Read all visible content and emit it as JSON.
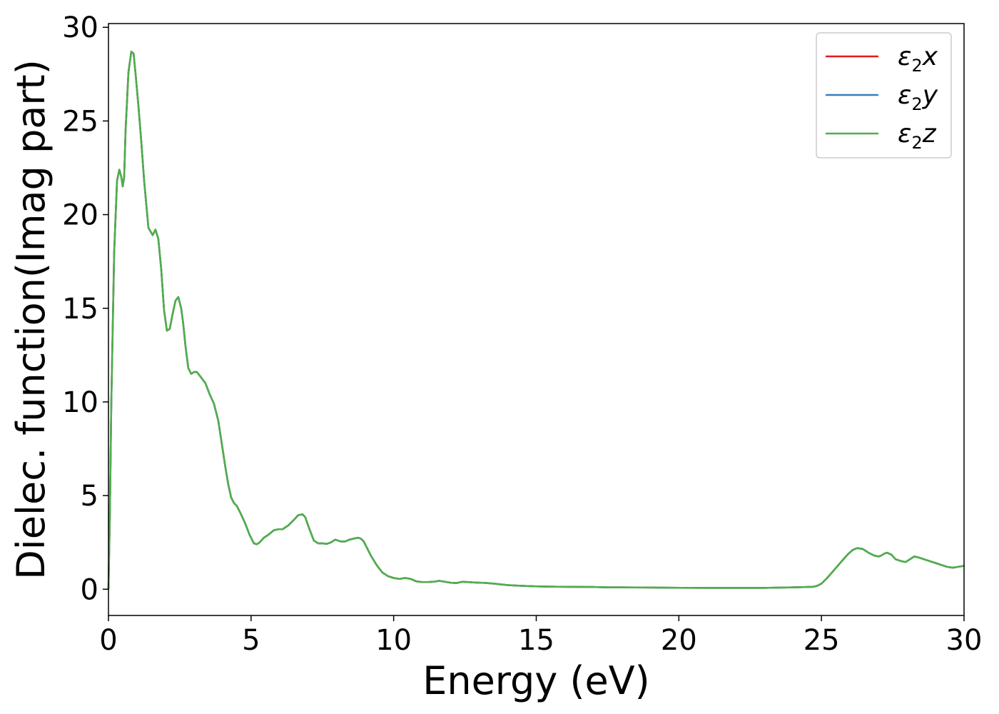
{
  "chart_data": {
    "type": "line",
    "title": "",
    "xlabel": "Energy (eV)",
    "ylabel": "Dielec. function(Imag part)",
    "xlim": [
      0,
      30
    ],
    "ylim": [
      -1.4,
      30.2
    ],
    "xticks": [
      0,
      5,
      10,
      15,
      20,
      25,
      30
    ],
    "yticks": [
      0,
      5,
      10,
      15,
      20,
      25,
      30
    ],
    "grid": false,
    "legend_position": "top-right",
    "series": [
      {
        "name": "ε2x",
        "legend_base": "ε",
        "legend_sub": "2",
        "legend_var": "x",
        "color": "#e41a1c",
        "x": [
          0,
          0.05,
          0.1,
          0.2,
          0.3,
          0.38,
          0.45,
          0.5,
          0.55,
          0.6,
          0.7,
          0.8,
          0.88,
          0.95,
          1.05,
          1.15,
          1.25,
          1.4,
          1.55,
          1.65,
          1.75,
          1.85,
          1.95,
          2.05,
          2.15,
          2.25,
          2.35,
          2.45,
          2.55,
          2.62,
          2.7,
          2.8,
          2.9,
          3.0,
          3.1,
          3.25,
          3.4,
          3.55,
          3.7,
          3.85,
          4.0,
          4.1,
          4.2,
          4.3,
          4.4,
          4.5,
          4.65,
          4.8,
          4.95,
          5.1,
          5.2,
          5.3,
          5.45,
          5.6,
          5.8,
          5.95,
          6.1,
          6.3,
          6.5,
          6.65,
          6.8,
          6.9,
          7.0,
          7.1,
          7.2,
          7.35,
          7.5,
          7.65,
          7.8,
          7.95,
          8.05,
          8.15,
          8.3,
          8.45,
          8.6,
          8.75,
          8.85,
          8.95,
          9.05,
          9.2,
          9.4,
          9.6,
          9.8,
          10.0,
          10.2,
          10.4,
          10.5,
          10.6,
          10.8,
          11.0,
          11.2,
          11.4,
          11.6,
          11.8,
          12.0,
          12.2,
          12.4,
          12.6,
          12.8,
          13.0,
          13.2,
          13.5,
          14.0,
          14.5,
          15.0,
          16.0,
          17.0,
          17.5,
          18.0,
          19.0,
          20.0,
          21.0,
          22.0,
          23.0,
          24.0,
          24.5,
          24.7,
          24.85,
          25.0,
          25.2,
          25.4,
          25.6,
          25.8,
          25.95,
          26.1,
          26.25,
          26.45,
          26.65,
          26.85,
          27.0,
          27.1,
          27.2,
          27.3,
          27.45,
          27.6,
          27.8,
          27.95,
          28.1,
          28.25,
          28.4,
          28.6,
          28.8,
          29.0,
          29.2,
          29.4,
          29.6,
          29.8,
          30.0
        ],
        "y": [
          0.0,
          4.0,
          10.0,
          18.0,
          21.8,
          22.4,
          22.0,
          21.5,
          22.0,
          24.5,
          27.6,
          28.7,
          28.6,
          27.5,
          25.8,
          23.9,
          21.8,
          19.3,
          18.9,
          19.2,
          18.7,
          17.1,
          14.9,
          13.8,
          13.9,
          14.7,
          15.4,
          15.6,
          15.0,
          14.2,
          13.0,
          11.8,
          11.5,
          11.6,
          11.6,
          11.3,
          11.0,
          10.4,
          9.9,
          9.0,
          7.5,
          6.5,
          5.6,
          4.9,
          4.6,
          4.45,
          4.0,
          3.5,
          2.9,
          2.45,
          2.4,
          2.5,
          2.75,
          2.9,
          3.15,
          3.2,
          3.2,
          3.4,
          3.7,
          3.95,
          4.0,
          3.85,
          3.4,
          3.0,
          2.6,
          2.45,
          2.45,
          2.42,
          2.5,
          2.65,
          2.6,
          2.55,
          2.55,
          2.65,
          2.7,
          2.75,
          2.7,
          2.55,
          2.25,
          1.8,
          1.3,
          0.9,
          0.7,
          0.6,
          0.55,
          0.6,
          0.58,
          0.55,
          0.42,
          0.38,
          0.38,
          0.4,
          0.45,
          0.4,
          0.35,
          0.33,
          0.4,
          0.38,
          0.36,
          0.35,
          0.34,
          0.3,
          0.22,
          0.18,
          0.15,
          0.13,
          0.12,
          0.1,
          0.1,
          0.09,
          0.08,
          0.07,
          0.07,
          0.07,
          0.1,
          0.12,
          0.13,
          0.18,
          0.3,
          0.6,
          0.95,
          1.3,
          1.65,
          1.9,
          2.1,
          2.2,
          2.15,
          1.95,
          1.8,
          1.75,
          1.8,
          1.9,
          1.95,
          1.85,
          1.6,
          1.5,
          1.45,
          1.6,
          1.75,
          1.7,
          1.6,
          1.5,
          1.4,
          1.3,
          1.2,
          1.15,
          1.2,
          1.25
        ]
      },
      {
        "name": "ε2y",
        "legend_base": "ε",
        "legend_sub": "2",
        "legend_var": "y",
        "color": "#377eb8",
        "x": [
          0,
          0.05,
          0.1,
          0.2,
          0.3,
          0.38,
          0.45,
          0.5,
          0.55,
          0.6,
          0.7,
          0.8,
          0.88,
          0.95,
          1.05,
          1.15,
          1.25,
          1.4,
          1.55,
          1.65,
          1.75,
          1.85,
          1.95,
          2.05,
          2.15,
          2.25,
          2.35,
          2.45,
          2.55,
          2.62,
          2.7,
          2.8,
          2.9,
          3.0,
          3.1,
          3.25,
          3.4,
          3.55,
          3.7,
          3.85,
          4.0,
          4.1,
          4.2,
          4.3,
          4.4,
          4.5,
          4.65,
          4.8,
          4.95,
          5.1,
          5.2,
          5.3,
          5.45,
          5.6,
          5.8,
          5.95,
          6.1,
          6.3,
          6.5,
          6.65,
          6.8,
          6.9,
          7.0,
          7.1,
          7.2,
          7.35,
          7.5,
          7.65,
          7.8,
          7.95,
          8.05,
          8.15,
          8.3,
          8.45,
          8.6,
          8.75,
          8.85,
          8.95,
          9.05,
          9.2,
          9.4,
          9.6,
          9.8,
          10.0,
          10.2,
          10.4,
          10.5,
          10.6,
          10.8,
          11.0,
          11.2,
          11.4,
          11.6,
          11.8,
          12.0,
          12.2,
          12.4,
          12.6,
          12.8,
          13.0,
          13.2,
          13.5,
          14.0,
          14.5,
          15.0,
          16.0,
          17.0,
          17.5,
          18.0,
          19.0,
          20.0,
          21.0,
          22.0,
          23.0,
          24.0,
          24.5,
          24.7,
          24.85,
          25.0,
          25.2,
          25.4,
          25.6,
          25.8,
          25.95,
          26.1,
          26.25,
          26.45,
          26.65,
          26.85,
          27.0,
          27.1,
          27.2,
          27.3,
          27.45,
          27.6,
          27.8,
          27.95,
          28.1,
          28.25,
          28.4,
          28.6,
          28.8,
          29.0,
          29.2,
          29.4,
          29.6,
          29.8,
          30.0
        ],
        "y": [
          0.0,
          4.0,
          10.0,
          18.0,
          21.8,
          22.4,
          22.0,
          21.5,
          22.0,
          24.5,
          27.6,
          28.7,
          28.6,
          27.5,
          25.8,
          23.9,
          21.8,
          19.3,
          18.9,
          19.2,
          18.7,
          17.1,
          14.9,
          13.8,
          13.9,
          14.7,
          15.4,
          15.6,
          15.0,
          14.2,
          13.0,
          11.8,
          11.5,
          11.6,
          11.6,
          11.3,
          11.0,
          10.4,
          9.9,
          9.0,
          7.5,
          6.5,
          5.6,
          4.9,
          4.6,
          4.45,
          4.0,
          3.5,
          2.9,
          2.45,
          2.4,
          2.5,
          2.75,
          2.9,
          3.15,
          3.2,
          3.2,
          3.4,
          3.7,
          3.95,
          4.0,
          3.85,
          3.4,
          3.0,
          2.6,
          2.45,
          2.45,
          2.42,
          2.5,
          2.65,
          2.6,
          2.55,
          2.55,
          2.65,
          2.7,
          2.75,
          2.7,
          2.55,
          2.25,
          1.8,
          1.3,
          0.9,
          0.7,
          0.6,
          0.55,
          0.6,
          0.58,
          0.55,
          0.42,
          0.38,
          0.38,
          0.4,
          0.45,
          0.4,
          0.35,
          0.33,
          0.4,
          0.38,
          0.36,
          0.35,
          0.34,
          0.3,
          0.22,
          0.18,
          0.15,
          0.13,
          0.12,
          0.1,
          0.1,
          0.09,
          0.08,
          0.07,
          0.07,
          0.07,
          0.1,
          0.12,
          0.13,
          0.18,
          0.3,
          0.6,
          0.95,
          1.3,
          1.65,
          1.9,
          2.1,
          2.2,
          2.15,
          1.95,
          1.8,
          1.75,
          1.8,
          1.9,
          1.95,
          1.85,
          1.6,
          1.5,
          1.45,
          1.6,
          1.75,
          1.7,
          1.6,
          1.5,
          1.4,
          1.3,
          1.2,
          1.15,
          1.2,
          1.25
        ]
      },
      {
        "name": "ε2z",
        "legend_base": "ε",
        "legend_sub": "2",
        "legend_var": "z",
        "color": "#4daf4a",
        "x": [
          0,
          0.05,
          0.1,
          0.2,
          0.3,
          0.38,
          0.45,
          0.5,
          0.55,
          0.6,
          0.7,
          0.8,
          0.88,
          0.95,
          1.05,
          1.15,
          1.25,
          1.4,
          1.55,
          1.65,
          1.75,
          1.85,
          1.95,
          2.05,
          2.15,
          2.25,
          2.35,
          2.45,
          2.55,
          2.62,
          2.7,
          2.8,
          2.9,
          3.0,
          3.1,
          3.25,
          3.4,
          3.55,
          3.7,
          3.85,
          4.0,
          4.1,
          4.2,
          4.3,
          4.4,
          4.5,
          4.65,
          4.8,
          4.95,
          5.1,
          5.2,
          5.3,
          5.45,
          5.6,
          5.8,
          5.95,
          6.1,
          6.3,
          6.5,
          6.65,
          6.8,
          6.9,
          7.0,
          7.1,
          7.2,
          7.35,
          7.5,
          7.65,
          7.8,
          7.95,
          8.05,
          8.15,
          8.3,
          8.45,
          8.6,
          8.75,
          8.85,
          8.95,
          9.05,
          9.2,
          9.4,
          9.6,
          9.8,
          10.0,
          10.2,
          10.4,
          10.5,
          10.6,
          10.8,
          11.0,
          11.2,
          11.4,
          11.6,
          11.8,
          12.0,
          12.2,
          12.4,
          12.6,
          12.8,
          13.0,
          13.2,
          13.5,
          14.0,
          14.5,
          15.0,
          16.0,
          17.0,
          17.5,
          18.0,
          19.0,
          20.0,
          21.0,
          22.0,
          23.0,
          24.0,
          24.5,
          24.7,
          24.85,
          25.0,
          25.2,
          25.4,
          25.6,
          25.8,
          25.95,
          26.1,
          26.25,
          26.45,
          26.65,
          26.85,
          27.0,
          27.1,
          27.2,
          27.3,
          27.45,
          27.6,
          27.8,
          27.95,
          28.1,
          28.25,
          28.4,
          28.6,
          28.8,
          29.0,
          29.2,
          29.4,
          29.6,
          29.8,
          30.0
        ],
        "y": [
          0.0,
          4.0,
          10.0,
          18.0,
          21.8,
          22.4,
          22.0,
          21.5,
          22.0,
          24.5,
          27.6,
          28.7,
          28.6,
          27.5,
          25.8,
          23.9,
          21.8,
          19.3,
          18.9,
          19.2,
          18.7,
          17.1,
          14.9,
          13.8,
          13.9,
          14.7,
          15.4,
          15.6,
          15.0,
          14.2,
          13.0,
          11.8,
          11.5,
          11.6,
          11.6,
          11.3,
          11.0,
          10.4,
          9.9,
          9.0,
          7.5,
          6.5,
          5.6,
          4.9,
          4.6,
          4.45,
          4.0,
          3.5,
          2.9,
          2.45,
          2.4,
          2.5,
          2.75,
          2.9,
          3.15,
          3.2,
          3.2,
          3.4,
          3.7,
          3.95,
          4.0,
          3.85,
          3.4,
          3.0,
          2.6,
          2.45,
          2.45,
          2.42,
          2.5,
          2.65,
          2.6,
          2.55,
          2.55,
          2.65,
          2.7,
          2.75,
          2.7,
          2.55,
          2.25,
          1.8,
          1.3,
          0.9,
          0.7,
          0.6,
          0.55,
          0.6,
          0.58,
          0.55,
          0.42,
          0.38,
          0.38,
          0.4,
          0.45,
          0.4,
          0.35,
          0.33,
          0.4,
          0.38,
          0.36,
          0.35,
          0.34,
          0.3,
          0.22,
          0.18,
          0.15,
          0.13,
          0.12,
          0.1,
          0.1,
          0.09,
          0.08,
          0.07,
          0.07,
          0.07,
          0.1,
          0.12,
          0.13,
          0.18,
          0.3,
          0.6,
          0.95,
          1.3,
          1.65,
          1.9,
          2.1,
          2.2,
          2.15,
          1.95,
          1.8,
          1.75,
          1.8,
          1.9,
          1.95,
          1.85,
          1.6,
          1.5,
          1.45,
          1.6,
          1.75,
          1.7,
          1.6,
          1.5,
          1.4,
          1.3,
          1.2,
          1.15,
          1.2,
          1.25
        ]
      }
    ]
  }
}
